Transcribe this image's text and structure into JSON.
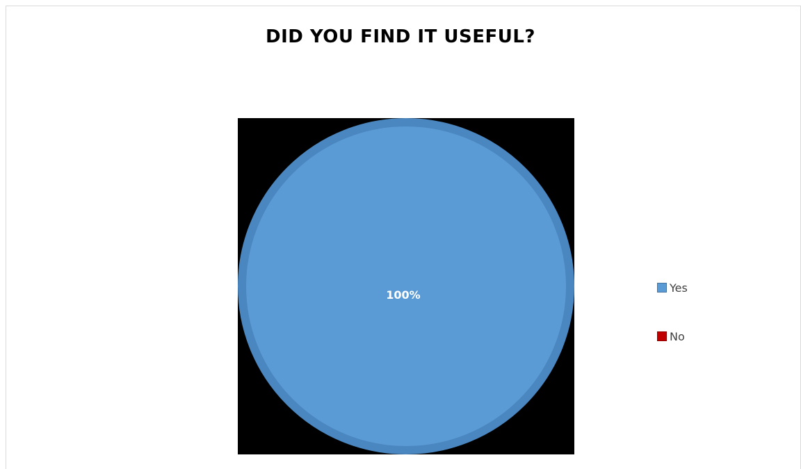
{
  "chart_data": {
    "type": "pie",
    "title": "DID YOU FIND IT USEFUL?",
    "categories": [
      "Yes",
      "No"
    ],
    "values": [
      100,
      0
    ],
    "value_labels": [
      "100%"
    ],
    "colors": [
      "#5b9bd5",
      "#c00000"
    ],
    "plot_background": "#000000",
    "slice_edge_color": "#4a86bf",
    "legend_position": "right"
  },
  "legend": {
    "items": [
      {
        "label": "Yes",
        "color": "#5b9bd5"
      },
      {
        "label": "No",
        "color": "#c00000"
      }
    ]
  }
}
